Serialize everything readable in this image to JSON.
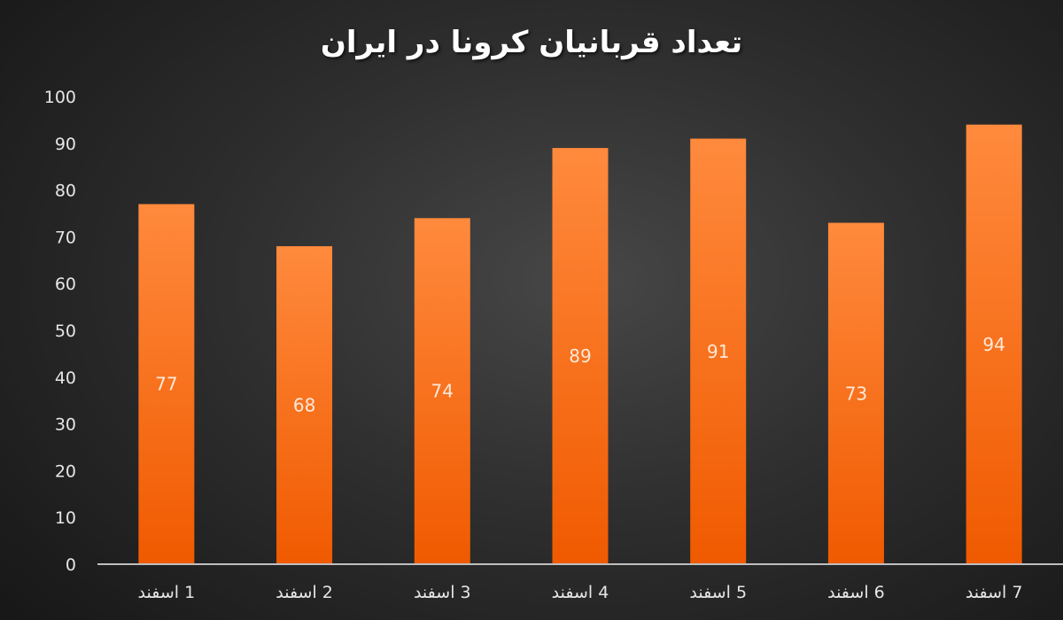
{
  "chart_data": {
    "type": "bar",
    "title": "تعداد قربانیان کرونا در ایران",
    "categories": [
      "1 اسفند",
      "2 اسفند",
      "3 اسفند",
      "4 اسفند",
      "5 اسفند",
      "6 اسفند",
      "7 اسفند"
    ],
    "values": [
      77,
      68,
      74,
      89,
      91,
      73,
      94
    ],
    "ylim": [
      0,
      100
    ],
    "yticks": [
      0,
      10,
      20,
      30,
      40,
      50,
      60,
      70,
      80,
      90,
      100
    ],
    "grid": false,
    "legend": "none",
    "data_labels": "inside-center",
    "colors": {
      "bar_top": "#ff8a3d",
      "bar_bottom": "#f05a00",
      "axis": "#bfbfbf"
    }
  }
}
